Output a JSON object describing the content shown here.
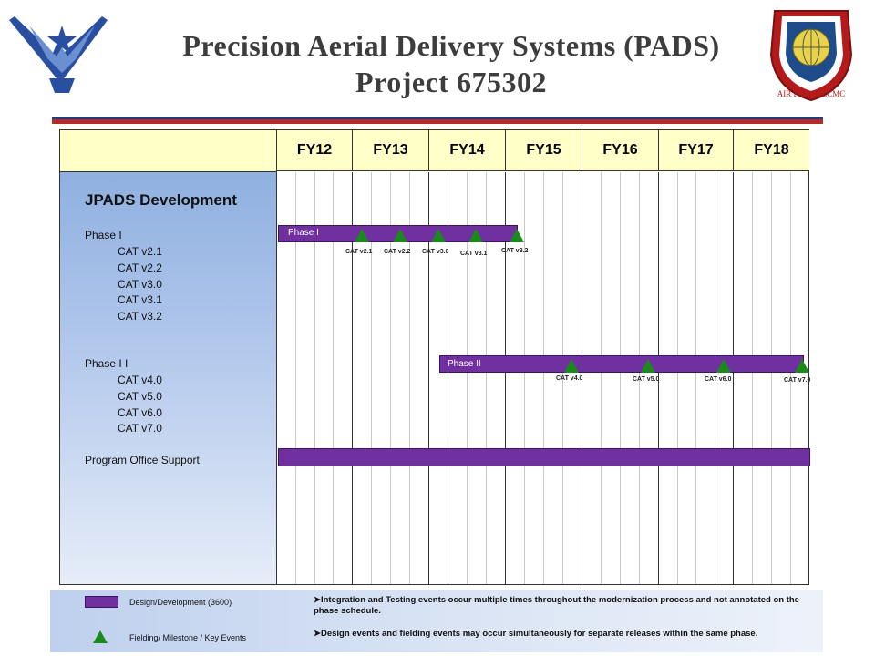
{
  "title": {
    "line1": "Precision Aerial Delivery Systems (PADS)",
    "line2": "Project 675302"
  },
  "logos": {
    "left": "air-force-wings-logo",
    "right": "air-force-lcmc-seal",
    "right_text": "AIR FORCE LCMC"
  },
  "schedule": {
    "fiscal_years": [
      "FY12",
      "FY13",
      "FY14",
      "FY15",
      "FY16",
      "FY17",
      "FY18"
    ],
    "section_title": "JPADS Development",
    "phase1": {
      "label": "Phase I",
      "items": [
        "CAT v2.1",
        "CAT v2.2",
        "CAT v3.0",
        "CAT v3.1",
        "CAT v3.2"
      ],
      "bar_label": "Phase I",
      "milestones": [
        "CAT v2.1",
        "CAT v2.2",
        "CAT v3.0",
        "CAT v3.1",
        "CAT v3.2"
      ]
    },
    "phase2": {
      "label": "Phase I I",
      "items": [
        "CAT v4.0",
        "CAT v5.0",
        "CAT v6.0",
        "CAT v7.0"
      ],
      "bar_label": "Phase II",
      "milestones": [
        "CAT v4.0",
        "CAT v5.0",
        "CAT v6.0",
        "CAT v7.0"
      ]
    },
    "support": {
      "label": "Program Office Support"
    }
  },
  "legend": {
    "bar_label": "Design/Development (3600)",
    "milestone_label": "Fielding/ Milestone / Key Events",
    "note1": "➤Integration and Testing events occur multiple times throughout the modernization process and not annotated on the phase schedule.",
    "note2": "➤Design events and fielding events may occur simultaneously for separate releases within the same phase."
  },
  "colors": {
    "bar": "#7030a0",
    "milestone": "#1a8a1a",
    "header_bg": "#ffffc7",
    "title_text": "#3d3d3d"
  }
}
